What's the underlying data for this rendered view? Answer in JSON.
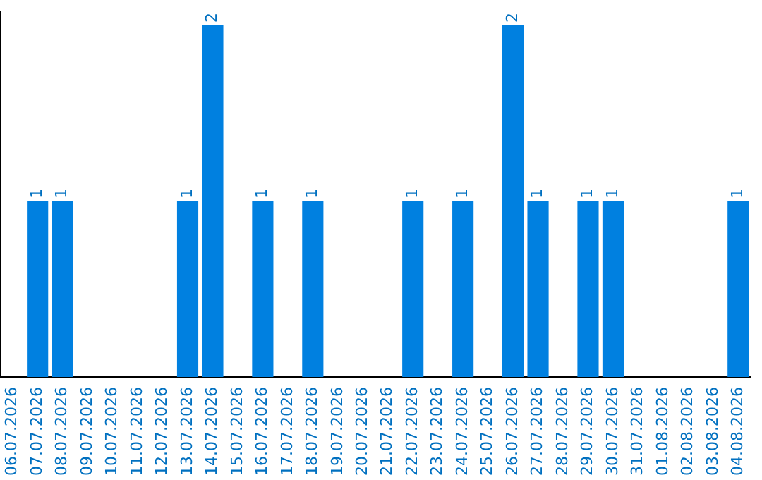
{
  "chart_data": {
    "type": "bar",
    "categories": [
      "06.07.2026",
      "07.07.2026",
      "08.07.2026",
      "09.07.2026",
      "10.07.2026",
      "11.07.2026",
      "12.07.2026",
      "13.07.2026",
      "14.07.2026",
      "15.07.2026",
      "16.07.2026",
      "17.07.2026",
      "18.07.2026",
      "19.07.2026",
      "20.07.2026",
      "21.07.2026",
      "22.07.2026",
      "23.07.2026",
      "24.07.2026",
      "25.07.2026",
      "26.07.2026",
      "27.07.2026",
      "28.07.2026",
      "29.07.2026",
      "30.07.2026",
      "31.07.2026",
      "01.08.2026",
      "02.08.2026",
      "03.08.2026",
      "04.08.2026"
    ],
    "values": [
      0,
      1,
      1,
      0,
      0,
      0,
      0,
      1,
      2,
      0,
      1,
      0,
      1,
      0,
      0,
      0,
      1,
      0,
      1,
      0,
      2,
      1,
      0,
      1,
      1,
      0,
      0,
      0,
      0,
      1
    ],
    "value_labels": [
      null,
      "1",
      "1",
      null,
      null,
      null,
      null,
      "1",
      "2",
      null,
      "1",
      null,
      "1",
      null,
      null,
      null,
      "1",
      null,
      "1",
      null,
      "2",
      "1",
      null,
      "1",
      "1",
      null,
      null,
      null,
      null,
      "1"
    ],
    "color": "#0080e0",
    "ylim": [
      0,
      2.08
    ],
    "tick_labels": "x",
    "grid": false,
    "legend": false
  }
}
